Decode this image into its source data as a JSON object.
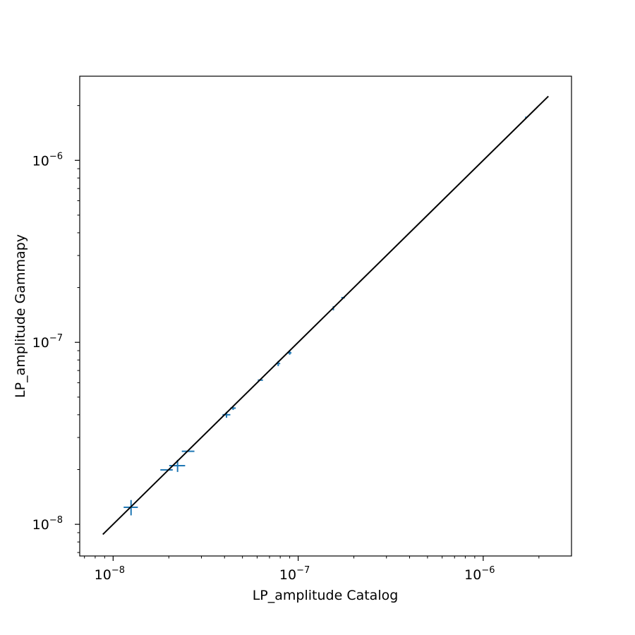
{
  "chart_data": {
    "type": "scatter",
    "title": "",
    "xlabel": "LP_amplitude Catalog",
    "ylabel": "LP_amplitude Gammapy",
    "xscale": "log",
    "yscale": "log",
    "xlim": [
      6.6e-09,
      3e-06
    ],
    "ylim": [
      6.7e-09,
      2.9e-06
    ],
    "grid": false,
    "legend": "none",
    "x_ticks": [
      {
        "value": 1e-08,
        "base": "10",
        "exp": "−8"
      },
      {
        "value": 1e-07,
        "base": "10",
        "exp": "−7"
      },
      {
        "value": 1e-06,
        "base": "10",
        "exp": "−6"
      }
    ],
    "y_ticks": [
      {
        "value": 1e-08,
        "base": "10",
        "exp": "−8"
      },
      {
        "value": 1e-07,
        "base": "10",
        "exp": "−7"
      },
      {
        "value": 1e-06,
        "base": "10",
        "exp": "−6"
      }
    ],
    "colors": {
      "points": "#1f77b4",
      "reference_line": "#000000"
    },
    "reference_line": {
      "x": [
        8.8e-09,
        2.25e-06
      ],
      "y": [
        8.8e-09,
        2.25e-06
      ]
    },
    "points": [
      {
        "x": 1.25e-08,
        "y": 1.24e-08,
        "xerr": 1.1e-09,
        "yerr": 1.2e-09
      },
      {
        "x": 1.95e-08,
        "y": 1.99e-08,
        "xerr": 1.5e-09,
        "yerr": 0
      },
      {
        "x": 2.23e-08,
        "y": 2.1e-08,
        "xerr": 2.2e-09,
        "yerr": 1.6e-09
      },
      {
        "x": 2.55e-08,
        "y": 2.52e-08,
        "xerr": 2e-09,
        "yerr": 0
      },
      {
        "x": 4.1e-08,
        "y": 4e-08,
        "xerr": 2e-09,
        "yerr": 1.5e-09
      },
      {
        "x": 4.45e-08,
        "y": 4.35e-08,
        "xerr": 1.5e-09,
        "yerr": 1e-09
      },
      {
        "x": 6.25e-08,
        "y": 6.2e-08,
        "xerr": 2e-09,
        "yerr": 0
      },
      {
        "x": 7.8e-08,
        "y": 7.65e-08,
        "xerr": 2e-09,
        "yerr": 2.5e-09
      },
      {
        "x": 9e-08,
        "y": 8.75e-08,
        "xerr": 2e-09,
        "yerr": 2e-09
      },
      {
        "x": 1.55e-07,
        "y": 1.54e-07,
        "xerr": 0,
        "yerr": 4e-09
      },
      {
        "x": 1.75e-07,
        "y": 1.76e-07,
        "xerr": 4e-09,
        "yerr": 0
      },
      {
        "x": 1.7e-06,
        "y": 1.72e-06,
        "xerr": 0,
        "yerr": 2e-08
      }
    ]
  }
}
